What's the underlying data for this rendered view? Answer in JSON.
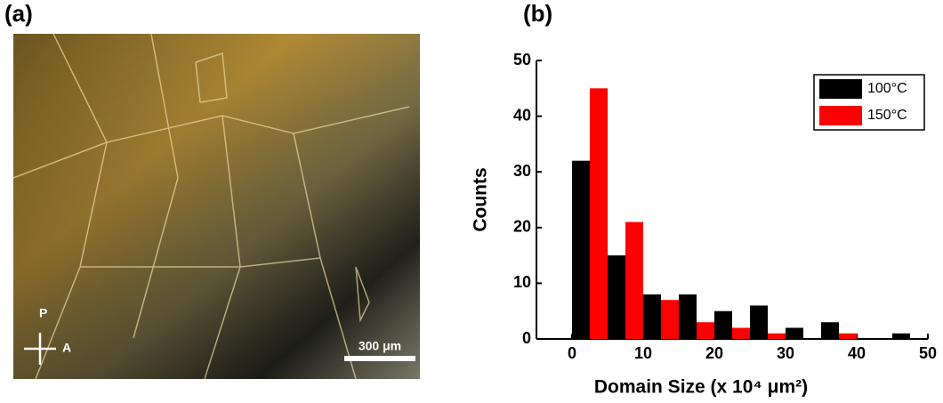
{
  "panel_labels": [
    "(a)",
    "(b)"
  ],
  "micrograph": {
    "polarizer": "P",
    "analyzer": "A",
    "scale_bar": "300 μm"
  },
  "chart_data": {
    "type": "bar",
    "x_label": "Domain Size (x 10⁴ μm²)",
    "y_label": "Counts",
    "x": [
      0,
      5,
      10,
      15,
      20,
      25,
      30,
      35,
      40,
      45
    ],
    "series": [
      {
        "name": "100°C",
        "color": "#000000",
        "values": [
          32,
          15,
          8,
          8,
          5,
          6,
          2,
          3,
          0,
          1
        ]
      },
      {
        "name": "150°C",
        "color": "#ff0000",
        "values": [
          45,
          21,
          7,
          3,
          2,
          1,
          0,
          1,
          0,
          0
        ]
      }
    ],
    "xlim": [
      -5,
      50
    ],
    "xticks": [
      0,
      10,
      20,
      30,
      40,
      50
    ],
    "ylim": [
      0,
      50
    ],
    "yticks": [
      0,
      10,
      20,
      30,
      40,
      50
    ],
    "legend": "upper right"
  }
}
